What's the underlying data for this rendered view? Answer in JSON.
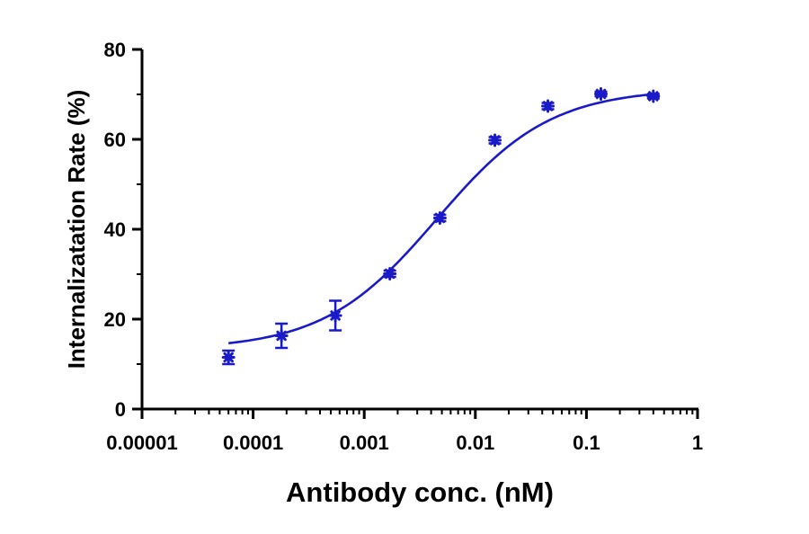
{
  "chart_data": {
    "type": "scatter",
    "title": "",
    "xlabel": "Antibody conc. (nM)",
    "ylabel": "Internalizatation Rate (%)",
    "xscale": "log",
    "xlim": [
      1e-05,
      1
    ],
    "ylim": [
      0,
      80
    ],
    "xticks": [
      {
        "value": 1e-05,
        "label": "0.00001"
      },
      {
        "value": 0.0001,
        "label": "0.0001"
      },
      {
        "value": 0.001,
        "label": "0.001"
      },
      {
        "value": 0.01,
        "label": "0.01"
      },
      {
        "value": 0.1,
        "label": "0.1"
      },
      {
        "value": 1,
        "label": "1"
      }
    ],
    "yticks": [
      {
        "value": 0,
        "label": "0"
      },
      {
        "value": 20,
        "label": "20"
      },
      {
        "value": 40,
        "label": "40"
      },
      {
        "value": 60,
        "label": "60"
      },
      {
        "value": 80,
        "label": "80"
      }
    ],
    "grid": false,
    "color": "#1a1ac8",
    "series": [
      {
        "points": [
          {
            "x": 6e-05,
            "y": 11.5,
            "err": 1.5
          },
          {
            "x": 0.00018,
            "y": 16.3,
            "err": 2.7
          },
          {
            "x": 0.00055,
            "y": 20.8,
            "err": 3.3
          },
          {
            "x": 0.0017,
            "y": 30.1,
            "err": 0.7
          },
          {
            "x": 0.0048,
            "y": 42.5,
            "err": 0.7
          },
          {
            "x": 0.015,
            "y": 59.8,
            "err": 0.7
          },
          {
            "x": 0.045,
            "y": 67.4,
            "err": 0.7
          },
          {
            "x": 0.135,
            "y": 70.1,
            "err": 0.5
          },
          {
            "x": 0.4,
            "y": 69.6,
            "err": 0.5
          }
        ],
        "fit": {
          "model": "4PL",
          "bottom": 13.2,
          "top": 71.3,
          "ec50": 0.0045,
          "hill": 0.85,
          "x_range": [
            6e-05,
            0.4
          ]
        }
      }
    ]
  }
}
